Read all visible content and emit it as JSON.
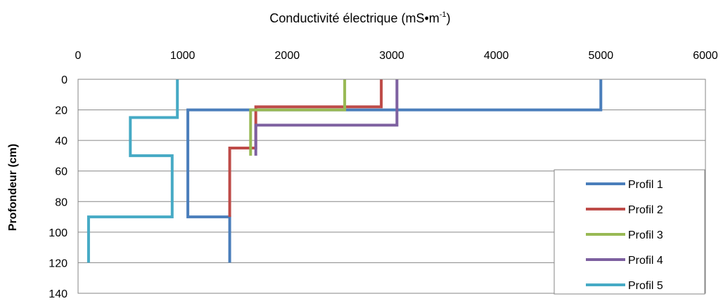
{
  "chart_data": {
    "type": "line",
    "title": "Conductivité électrique (mS•m",
    "title_superscript": "-1",
    "title_suffix": ")",
    "xlabel": "Conductivité électrique (mS•m-1)",
    "ylabel": "Profondeur (cm)",
    "x_axis_position": "top",
    "y_axis_inverted": true,
    "xlim": [
      0,
      6000
    ],
    "ylim": [
      0,
      140
    ],
    "x_ticks": [
      "0",
      "1000",
      "2000",
      "3000",
      "4000",
      "5000",
      "6000"
    ],
    "y_ticks": [
      "0",
      "20",
      "40",
      "60",
      "80",
      "100",
      "120",
      "140"
    ],
    "grid": "horizontal",
    "legend_position": "bottom-right",
    "series": [
      {
        "name": "Profil 1",
        "color": "#4A7EBB",
        "x": [
          5000,
          5000,
          1050,
          1050,
          1450,
          1450
        ],
        "y": [
          0,
          20,
          20,
          90,
          90,
          120
        ]
      },
      {
        "name": "Profil 2",
        "color": "#BE4B48",
        "x": [
          2900,
          2900,
          1700,
          1700,
          1450,
          1450
        ],
        "y": [
          0,
          18,
          18,
          45,
          45,
          90
        ]
      },
      {
        "name": "Profil 3",
        "color": "#98B954",
        "x": [
          2550,
          2550,
          1650,
          1650
        ],
        "y": [
          0,
          20,
          20,
          50
        ]
      },
      {
        "name": "Profil 4",
        "color": "#7D60A0",
        "x": [
          3050,
          3050,
          1700,
          1700
        ],
        "y": [
          0,
          30,
          30,
          50
        ]
      },
      {
        "name": "Profil 5",
        "color": "#46AAC5",
        "x": [
          950,
          950,
          500,
          500,
          900,
          900,
          100,
          100
        ],
        "y": [
          0,
          25,
          25,
          50,
          50,
          90,
          90,
          120
        ]
      }
    ]
  }
}
